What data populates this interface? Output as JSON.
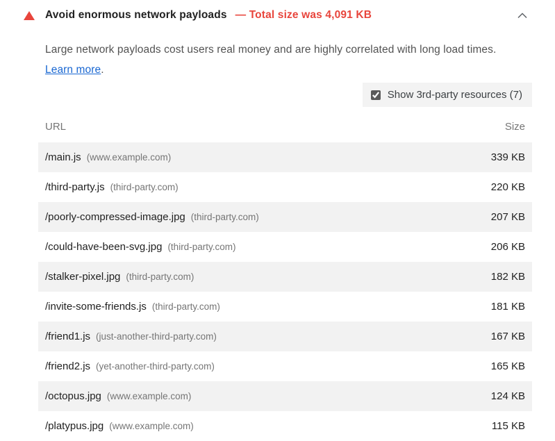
{
  "header": {
    "title": "Avoid enormous network payloads",
    "subtitle": "— Total size was 4,091 KB"
  },
  "description": {
    "text": "Large network payloads cost users real money and are highly correlated with long load times. ",
    "link_label": "Learn more",
    "after_link": "."
  },
  "filter": {
    "checked": true,
    "label": "Show 3rd-party resources (7)"
  },
  "table": {
    "columns": [
      "URL",
      "Size"
    ],
    "rows": [
      {
        "url": "/main.js",
        "host": "(www.example.com)",
        "size": "339 KB"
      },
      {
        "url": "/third-party.js",
        "host": "(third-party.com)",
        "size": "220 KB"
      },
      {
        "url": "/poorly-compressed-image.jpg",
        "host": "(third-party.com)",
        "size": "207 KB"
      },
      {
        "url": "/could-have-been-svg.jpg",
        "host": "(third-party.com)",
        "size": "206 KB"
      },
      {
        "url": "/stalker-pixel.jpg",
        "host": "(third-party.com)",
        "size": "182 KB"
      },
      {
        "url": "/invite-some-friends.js",
        "host": "(third-party.com)",
        "size": "181 KB"
      },
      {
        "url": "/friend1.js",
        "host": "(just-another-third-party.com)",
        "size": "167 KB"
      },
      {
        "url": "/friend2.js",
        "host": "(yet-another-third-party.com)",
        "size": "165 KB"
      },
      {
        "url": "/octopus.jpg",
        "host": "(www.example.com)",
        "size": "124 KB"
      },
      {
        "url": "/platypus.jpg",
        "host": "(www.example.com)",
        "size": "115 KB"
      }
    ]
  },
  "colors": {
    "fail_red": "#e8453c",
    "link_blue": "#1967d2",
    "row_stripe": "#f2f2f2",
    "filter_bg": "#f3f3f3",
    "muted_text": "#757575"
  }
}
